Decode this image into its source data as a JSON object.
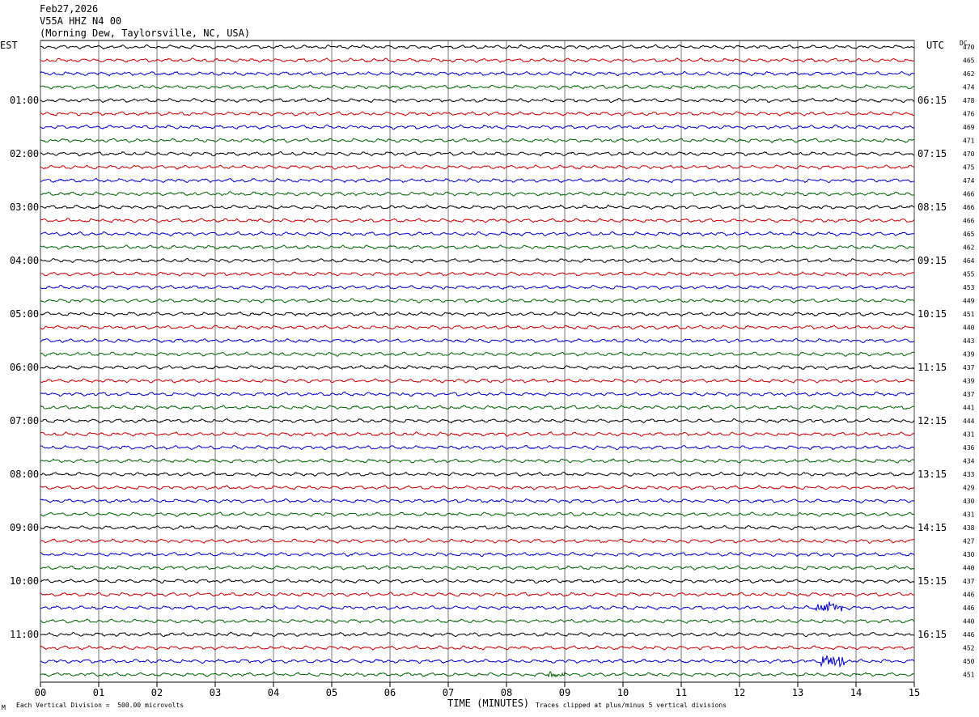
{
  "header": {
    "date": "Feb27,2026",
    "station": "V55A HHZ N4 00",
    "location": "(Morning Dew, Taylorsville, NC, USA)"
  },
  "labels": {
    "left_tz": "EST",
    "right_tz": "UTC",
    "dc": "DC",
    "xlabel": "TIME (MINUTES)",
    "scale_note": "Each Vertical Division =  500.00 microvolts",
    "clip_note": "Traces clipped at plus/minus 5 vertical divisions",
    "corner_mark": "M"
  },
  "colors": {
    "trace_cycle": [
      "#000000",
      "#cc0000",
      "#0000cc",
      "#006600"
    ],
    "grid": "#000000"
  },
  "chart_data": {
    "type": "line",
    "title": "",
    "xlabel": "TIME (MINUTES)",
    "xlim": [
      0,
      15
    ],
    "x_ticks": [
      "00",
      "01",
      "02",
      "03",
      "04",
      "05",
      "06",
      "07",
      "08",
      "09",
      "10",
      "11",
      "12",
      "13",
      "14",
      "15"
    ],
    "trace_count": 48,
    "minutes_per_trace": 15,
    "left_hour_labels": [
      "01:00",
      "02:00",
      "03:00",
      "04:00",
      "05:00",
      "06:00",
      "07:00",
      "08:00",
      "09:00",
      "10:00",
      "11:00"
    ],
    "right_hour_labels": [
      "06:15",
      "07:15",
      "08:15",
      "09:15",
      "10:15",
      "11:15",
      "12:15",
      "13:15",
      "14:15",
      "15:15",
      "16:15"
    ],
    "dc_values": [
      "470",
      "465",
      "462",
      "474",
      "478",
      "476",
      "469",
      "471",
      "470",
      "475",
      "474",
      "466",
      "466",
      "466",
      "465",
      "462",
      "464",
      "455",
      "453",
      "449",
      "451",
      "440",
      "443",
      "439",
      "437",
      "439",
      "437",
      "441",
      "444",
      "431",
      "436",
      "434",
      "433",
      "429",
      "430",
      "431",
      "438",
      "427",
      "430",
      "440",
      "437",
      "446",
      "446",
      "440",
      "446",
      "452",
      "450",
      "451"
    ],
    "events": [
      {
        "trace": 42,
        "minute_start": 13.3,
        "minute_end": 13.8,
        "amplitude_div": 2.5
      },
      {
        "trace": 46,
        "minute_start": 13.4,
        "minute_end": 13.8,
        "amplitude_div": 3.0
      },
      {
        "trace": 47,
        "minute_start": 8.7,
        "minute_end": 9.0,
        "amplitude_div": 1.5
      }
    ]
  }
}
